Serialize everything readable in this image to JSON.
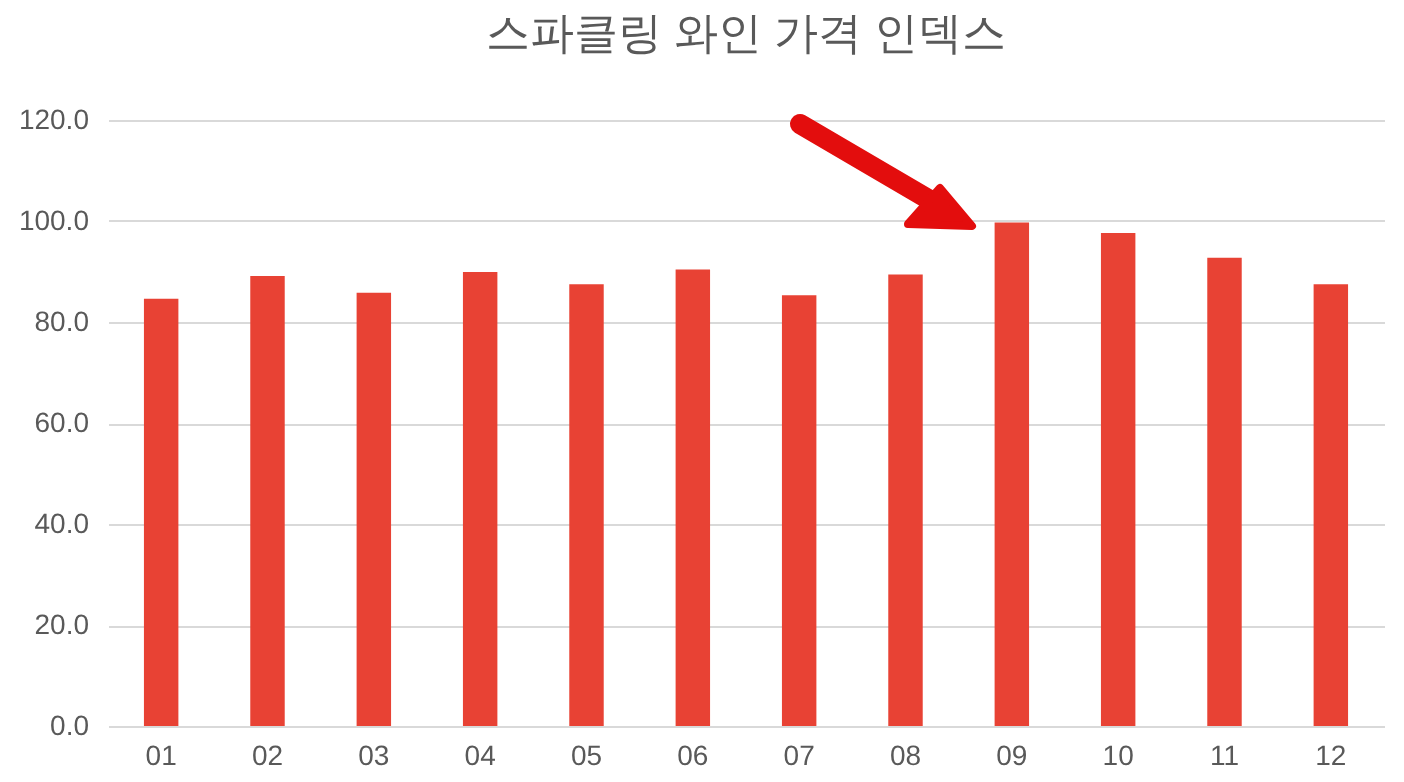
{
  "chart_data": {
    "type": "bar",
    "title": "스파클링 와인 가격 인덱스",
    "categories": [
      "01",
      "02",
      "03",
      "04",
      "05",
      "06",
      "07",
      "08",
      "09",
      "10",
      "11",
      "12"
    ],
    "values": [
      84.6,
      89.1,
      85.8,
      89.9,
      87.5,
      90.4,
      85.3,
      89.4,
      99.7,
      97.6,
      92.7,
      87.5
    ],
    "color": "#e84234",
    "ylim": [
      0,
      120
    ],
    "yticks": [
      {
        "value": 0,
        "label": "0.0"
      },
      {
        "value": 20,
        "label": "20.0"
      },
      {
        "value": 40,
        "label": "40.0"
      },
      {
        "value": 60,
        "label": "60.0"
      },
      {
        "value": 80,
        "label": "80.0"
      },
      {
        "value": 100,
        "label": "100.0"
      },
      {
        "value": 120,
        "label": "120.0"
      }
    ],
    "grid": "y"
  }
}
